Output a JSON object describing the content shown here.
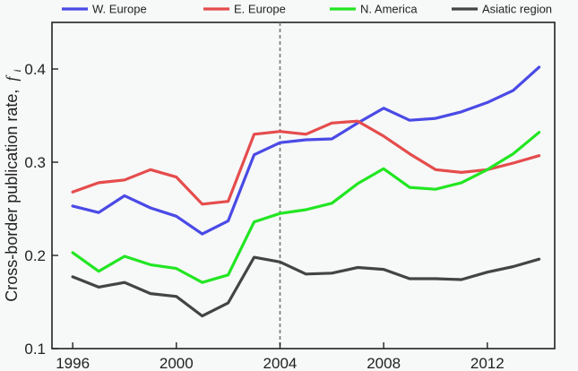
{
  "chart_data": {
    "type": "line",
    "title": "",
    "xlabel": "",
    "ylabel": "Cross-border publication rate,",
    "ylabel_symbol": "f",
    "ylabel_subscript": "i",
    "xlim": [
      1995.2,
      2014.6
    ],
    "ylim": [
      0.1,
      0.45
    ],
    "x_ticks": [
      1996,
      2000,
      2004,
      2008,
      2012
    ],
    "y_ticks": [
      0.1,
      0.2,
      0.3,
      0.4
    ],
    "y_tick_labels": [
      "0.1",
      "0.2",
      "0.3",
      "0.4"
    ],
    "vertical_marker_x": 2004,
    "legend_position": "top",
    "grid": false,
    "x": [
      1996,
      1997,
      1998,
      1999,
      2000,
      2001,
      2002,
      2003,
      2004,
      2005,
      2006,
      2007,
      2008,
      2009,
      2010,
      2011,
      2012,
      2013,
      2014
    ],
    "series": [
      {
        "name": "W. Europe",
        "color": "#4a4ae6",
        "values": [
          0.253,
          0.246,
          0.264,
          0.251,
          0.242,
          0.223,
          0.237,
          0.308,
          0.321,
          0.324,
          0.325,
          0.342,
          0.358,
          0.345,
          0.347,
          0.354,
          0.364,
          0.377,
          0.402
        ]
      },
      {
        "name": "E. Europe",
        "color": "#e54c4c",
        "values": [
          0.268,
          0.278,
          0.281,
          0.292,
          0.284,
          0.255,
          0.258,
          0.33,
          0.333,
          0.33,
          0.342,
          0.344,
          0.328,
          0.309,
          0.292,
          0.289,
          0.292,
          0.299,
          0.307
        ]
      },
      {
        "name": "N. America",
        "color": "#22e622",
        "values": [
          0.203,
          0.183,
          0.199,
          0.19,
          0.186,
          0.171,
          0.179,
          0.236,
          0.245,
          0.249,
          0.256,
          0.277,
          0.293,
          0.273,
          0.271,
          0.278,
          0.292,
          0.309,
          0.332
        ]
      },
      {
        "name": "Asiatic region",
        "color": "#444444",
        "values": [
          0.177,
          0.166,
          0.171,
          0.159,
          0.156,
          0.135,
          0.149,
          0.198,
          0.193,
          0.18,
          0.181,
          0.187,
          0.185,
          0.175,
          0.175,
          0.174,
          0.182,
          0.188,
          0.196
        ]
      }
    ]
  }
}
